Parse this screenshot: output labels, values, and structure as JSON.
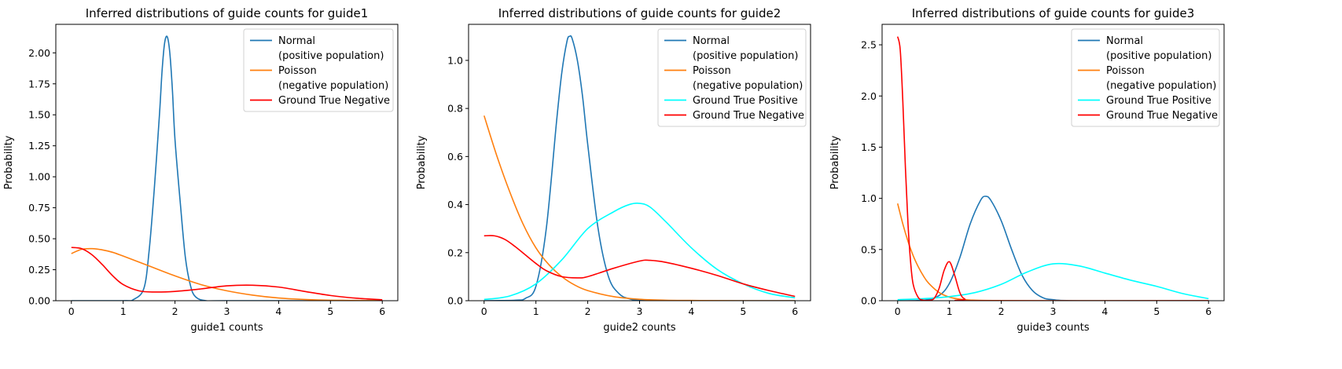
{
  "figure": {
    "background": "#ffffff"
  },
  "chart_data": [
    {
      "type": "line",
      "title": "Inferred distributions of guide counts for guide1",
      "xlabel": "guide1 counts",
      "ylabel": "Probability",
      "xlim": [
        -0.3,
        6.3
      ],
      "ylim": [
        0,
        2.23
      ],
      "xticks": [
        0,
        1,
        2,
        3,
        4,
        5,
        6
      ],
      "xtick_labels": [
        "0",
        "1",
        "2",
        "3",
        "4",
        "5",
        "6"
      ],
      "yticks": [
        0,
        0.25,
        0.5,
        0.75,
        1.0,
        1.25,
        1.5,
        1.75,
        2.0
      ],
      "ytick_labels": [
        "0.00",
        "0.25",
        "0.50",
        "0.75",
        "1.00",
        "1.25",
        "1.50",
        "1.75",
        "2.00"
      ],
      "legend_position": "top-right",
      "series": [
        {
          "name": "Normal\n(positive population)",
          "color": "#1f77b4",
          "x": [
            0,
            1.0,
            1.2,
            1.4,
            1.5,
            1.6,
            1.7,
            1.75,
            1.8,
            1.85,
            1.9,
            1.95,
            2.0,
            2.1,
            2.2,
            2.3,
            2.4,
            2.6,
            3.0,
            6.0
          ],
          "y": [
            0,
            0,
            0.01,
            0.1,
            0.4,
            0.9,
            1.5,
            1.85,
            2.08,
            2.13,
            2.0,
            1.7,
            1.3,
            0.8,
            0.35,
            0.12,
            0.03,
            0,
            0,
            0
          ]
        },
        {
          "name": "Poisson\n(negative population)",
          "color": "#ff7f0e",
          "x": [
            0,
            0.2,
            0.4,
            0.6,
            0.8,
            1.0,
            1.5,
            2.0,
            2.5,
            3.0,
            3.5,
            4.0,
            4.5,
            5.0,
            6.0
          ],
          "y": [
            0.38,
            0.415,
            0.42,
            0.41,
            0.39,
            0.36,
            0.28,
            0.2,
            0.13,
            0.08,
            0.045,
            0.022,
            0.01,
            0.004,
            0.001
          ]
        },
        {
          "name": "Ground True Negative",
          "color": "#ff0000",
          "x": [
            0,
            0.2,
            0.4,
            0.6,
            0.8,
            1.0,
            1.3,
            1.6,
            2.0,
            2.5,
            3.0,
            3.5,
            4.0,
            4.5,
            5.0,
            5.5,
            6.0
          ],
          "y": [
            0.43,
            0.42,
            0.37,
            0.29,
            0.2,
            0.13,
            0.08,
            0.07,
            0.075,
            0.095,
            0.12,
            0.125,
            0.11,
            0.075,
            0.042,
            0.02,
            0.008
          ]
        }
      ]
    },
    {
      "type": "line",
      "title": "Inferred distributions of guide counts for guide2",
      "xlabel": "guide2 counts",
      "ylabel": "Probability",
      "xlim": [
        -0.3,
        6.3
      ],
      "ylim": [
        0,
        1.15
      ],
      "xticks": [
        0,
        1,
        2,
        3,
        4,
        5,
        6
      ],
      "xtick_labels": [
        "0",
        "1",
        "2",
        "3",
        "4",
        "5",
        "6"
      ],
      "yticks": [
        0,
        0.2,
        0.4,
        0.6,
        0.8,
        1.0
      ],
      "ytick_labels": [
        "0.0",
        "0.2",
        "0.4",
        "0.6",
        "0.8",
        "1.0"
      ],
      "legend_position": "top-right",
      "series": [
        {
          "name": "Normal\n(positive population)",
          "color": "#1f77b4",
          "x": [
            0,
            0.6,
            0.8,
            1.0,
            1.2,
            1.4,
            1.5,
            1.6,
            1.65,
            1.7,
            1.8,
            1.9,
            2.0,
            2.2,
            2.4,
            2.6,
            2.8,
            3.0,
            3.5,
            6.0
          ],
          "y": [
            0,
            0.002,
            0.01,
            0.06,
            0.3,
            0.75,
            0.95,
            1.08,
            1.1,
            1.09,
            1.0,
            0.85,
            0.65,
            0.3,
            0.1,
            0.03,
            0.008,
            0.002,
            0,
            0
          ]
        },
        {
          "name": "Poisson\n(negative population)",
          "color": "#ff7f0e",
          "x": [
            0,
            0.25,
            0.5,
            0.75,
            1.0,
            1.25,
            1.5,
            1.75,
            2.0,
            2.5,
            3.0,
            3.5,
            4.0,
            5.0,
            6.0
          ],
          "y": [
            0.77,
            0.6,
            0.45,
            0.32,
            0.22,
            0.15,
            0.1,
            0.065,
            0.042,
            0.017,
            0.006,
            0.002,
            0.001,
            0,
            0
          ]
        },
        {
          "name": "Ground True Positive",
          "color": "#00ffff",
          "x": [
            0,
            0.5,
            1.0,
            1.5,
            2.0,
            2.5,
            2.8,
            3.0,
            3.2,
            3.5,
            4.0,
            4.5,
            5.0,
            5.5,
            6.0
          ],
          "y": [
            0.005,
            0.02,
            0.07,
            0.17,
            0.3,
            0.37,
            0.4,
            0.405,
            0.39,
            0.33,
            0.22,
            0.13,
            0.07,
            0.03,
            0.012
          ]
        },
        {
          "name": "Ground True Negative",
          "color": "#ff0000",
          "x": [
            0,
            0.2,
            0.4,
            0.6,
            0.8,
            1.0,
            1.2,
            1.5,
            1.8,
            2.0,
            2.5,
            3.0,
            3.2,
            3.5,
            4.0,
            4.5,
            5.0,
            5.5,
            6.0
          ],
          "y": [
            0.27,
            0.27,
            0.255,
            0.225,
            0.19,
            0.155,
            0.125,
            0.1,
            0.095,
            0.1,
            0.135,
            0.165,
            0.168,
            0.16,
            0.135,
            0.105,
            0.07,
            0.042,
            0.018
          ]
        }
      ]
    },
    {
      "type": "line",
      "title": "Inferred distributions of guide counts for guide3",
      "xlabel": "guide3 counts",
      "ylabel": "Probability",
      "xlim": [
        -0.3,
        6.3
      ],
      "ylim": [
        0,
        2.7
      ],
      "xticks": [
        0,
        1,
        2,
        3,
        4,
        5,
        6
      ],
      "xtick_labels": [
        "0",
        "1",
        "2",
        "3",
        "4",
        "5",
        "6"
      ],
      "yticks": [
        0,
        0.5,
        1.0,
        1.5,
        2.0,
        2.5
      ],
      "ytick_labels": [
        "0.0",
        "0.5",
        "1.0",
        "1.5",
        "2.0",
        "2.5"
      ],
      "legend_position": "top-right",
      "series": [
        {
          "name": "Normal\n(positive population)",
          "color": "#1f77b4",
          "x": [
            0,
            0.5,
            0.8,
            1.0,
            1.2,
            1.4,
            1.6,
            1.7,
            1.8,
            2.0,
            2.2,
            2.4,
            2.6,
            2.8,
            3.0,
            3.5,
            6.0
          ],
          "y": [
            0,
            0.005,
            0.05,
            0.17,
            0.42,
            0.75,
            0.98,
            1.02,
            0.98,
            0.78,
            0.5,
            0.25,
            0.1,
            0.03,
            0.01,
            0,
            0
          ]
        },
        {
          "name": "Poisson\n(negative population)",
          "color": "#ff7f0e",
          "x": [
            0,
            0.1,
            0.2,
            0.3,
            0.4,
            0.5,
            0.6,
            0.8,
            1.0,
            1.2,
            1.5,
            2.0,
            3.0,
            6.0
          ],
          "y": [
            0.95,
            0.75,
            0.58,
            0.44,
            0.33,
            0.24,
            0.17,
            0.08,
            0.035,
            0.015,
            0.004,
            0.001,
            0,
            0
          ]
        },
        {
          "name": "Ground True Positive",
          "color": "#00ffff",
          "x": [
            0,
            0.5,
            1.0,
            1.5,
            2.0,
            2.5,
            3.0,
            3.5,
            4.0,
            4.5,
            5.0,
            5.5,
            6.0
          ],
          "y": [
            0.01,
            0.02,
            0.04,
            0.08,
            0.16,
            0.28,
            0.36,
            0.34,
            0.27,
            0.2,
            0.14,
            0.07,
            0.02
          ]
        },
        {
          "name": "Ground True Negative",
          "color": "#ff0000",
          "x": [
            0,
            0.05,
            0.1,
            0.15,
            0.2,
            0.25,
            0.3,
            0.4,
            0.5,
            0.6,
            0.7,
            0.8,
            0.9,
            1.0,
            1.1,
            1.2,
            1.3,
            1.5,
            6.0
          ],
          "y": [
            2.58,
            2.45,
            1.95,
            1.3,
            0.75,
            0.38,
            0.16,
            0.03,
            0.005,
            0.003,
            0.02,
            0.12,
            0.3,
            0.38,
            0.25,
            0.08,
            0.015,
            0,
            0
          ]
        }
      ]
    }
  ]
}
